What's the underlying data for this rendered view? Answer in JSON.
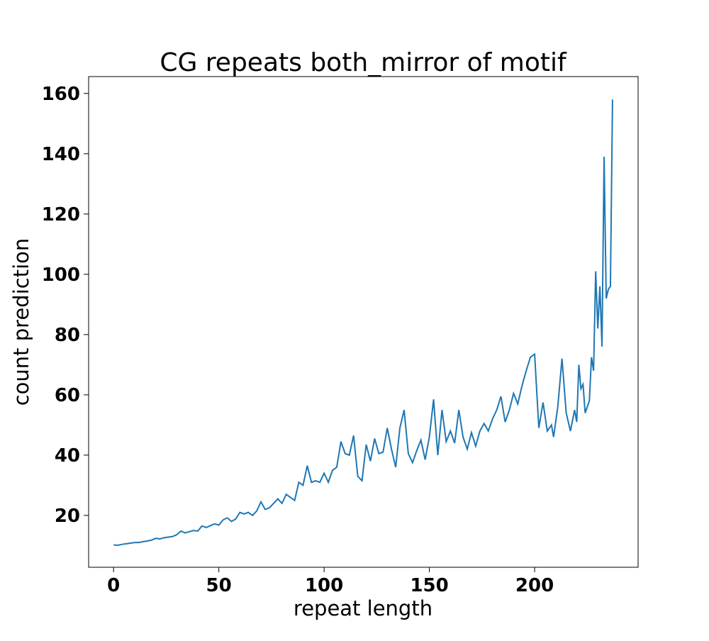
{
  "chart_data": {
    "type": "line",
    "title": "CG repeats both_mirror of motif",
    "x_label": "repeat length",
    "y_label": "count prediction",
    "x": [
      0,
      2,
      4,
      6,
      8,
      10,
      12,
      14,
      16,
      18,
      20,
      22,
      24,
      26,
      28,
      30,
      32,
      34,
      36,
      38,
      40,
      42,
      44,
      46,
      48,
      50,
      52,
      54,
      56,
      58,
      60,
      62,
      64,
      66,
      68,
      70,
      72,
      74,
      76,
      78,
      80,
      82,
      84,
      86,
      88,
      90,
      92,
      94,
      96,
      98,
      100,
      102,
      104,
      106,
      108,
      110,
      112,
      114,
      116,
      118,
      120,
      122,
      124,
      126,
      128,
      130,
      132,
      134,
      136,
      138,
      140,
      142,
      144,
      146,
      148,
      150,
      152,
      154,
      156,
      158,
      160,
      162,
      164,
      166,
      168,
      170,
      172,
      174,
      176,
      178,
      180,
      182,
      184,
      186,
      188,
      190,
      192,
      194,
      196,
      198,
      200,
      202,
      204,
      206,
      208,
      209,
      211,
      213,
      215,
      217,
      219,
      220,
      221,
      222,
      223,
      224,
      225,
      226,
      227,
      228,
      229,
      230,
      231,
      232,
      233,
      234,
      235,
      236,
      237
    ],
    "series": [
      {
        "name": "count prediction",
        "color": "#1f77b4",
        "values": [
          10.2,
          10.1,
          10.4,
          10.6,
          10.8,
          11.0,
          11.0,
          11.3,
          11.5,
          11.8,
          12.4,
          12.2,
          12.6,
          12.8,
          13.0,
          13.6,
          14.8,
          14.2,
          14.6,
          15.0,
          14.8,
          16.5,
          16.0,
          16.6,
          17.2,
          16.8,
          18.5,
          19.2,
          18.0,
          18.8,
          21.0,
          20.5,
          21.0,
          20.0,
          21.5,
          24.5,
          22.0,
          22.5,
          24.0,
          25.5,
          24.0,
          27.0,
          26.0,
          25.0,
          31.0,
          30.0,
          36.5,
          31.0,
          31.5,
          31.0,
          34.0,
          31.0,
          35.0,
          36.0,
          44.5,
          40.5,
          40.0,
          46.5,
          33.0,
          31.5,
          43.5,
          38.0,
          45.5,
          40.5,
          41.0,
          49.0,
          42.0,
          36.0,
          49.0,
          55.0,
          40.5,
          37.5,
          41.5,
          45.0,
          38.5,
          46.0,
          58.5,
          40.0,
          55.0,
          44.5,
          48.0,
          44.0,
          55.0,
          46.0,
          42.0,
          47.5,
          43.0,
          48.0,
          50.5,
          48.0,
          52.0,
          55.0,
          59.5,
          51.0,
          55.0,
          60.5,
          57.0,
          63.0,
          68.0,
          72.5,
          73.5,
          49.0,
          57.5,
          48.0,
          50.0,
          46.0,
          56.0,
          72.0,
          54.0,
          48.0,
          55.0,
          51.0,
          70.0,
          62.0,
          63.5,
          54.0,
          56.0,
          58.0,
          72.5,
          68.0,
          101.0,
          82.0,
          96.0,
          76.0,
          139.0,
          92.0,
          95.0,
          96.0,
          158.0
        ]
      }
    ],
    "xlim": [
      -11.85,
      249.15
    ],
    "xticks": [
      0,
      50,
      100,
      150,
      200
    ],
    "ylim": [
      2.8,
      165.6
    ],
    "yticks": [
      20,
      40,
      60,
      80,
      100,
      120,
      140,
      160
    ]
  }
}
